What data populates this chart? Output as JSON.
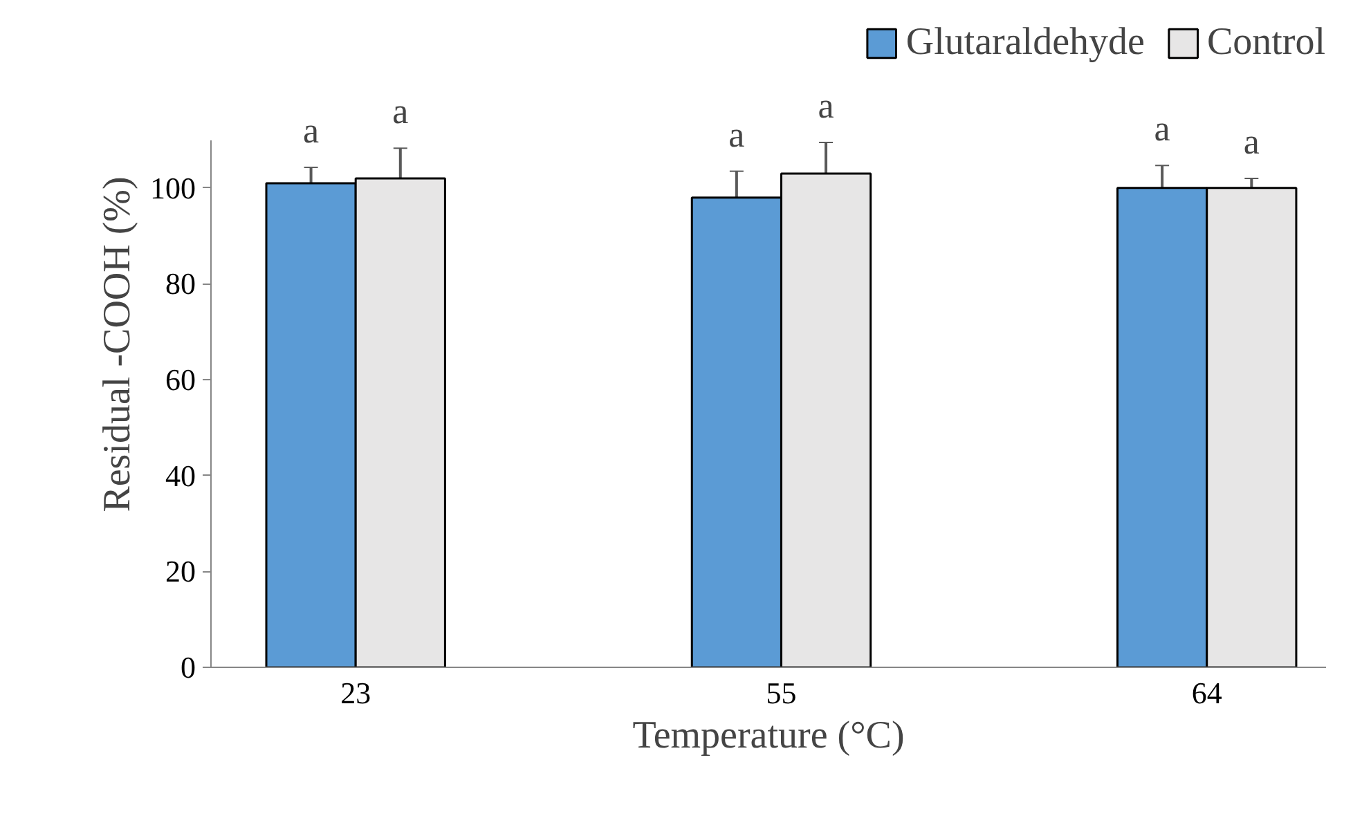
{
  "chart_data": {
    "type": "bar",
    "xlabel": "Temperature (°C)",
    "ylabel": "Residual -COOH (%)",
    "categories": [
      "23",
      "55",
      "64"
    ],
    "series": [
      {
        "name": "Glutaraldehyde",
        "color": "#5b9bd5",
        "values": [
          101,
          98,
          100
        ],
        "errors": [
          3.3,
          5.5,
          4.7
        ]
      },
      {
        "name": "Control",
        "color": "#e7e6e6",
        "values": [
          102,
          103,
          100
        ],
        "errors": [
          6.3,
          6.5,
          2.0
        ]
      }
    ],
    "annotations": [
      "a",
      "a",
      "a",
      "a",
      "a",
      "a"
    ],
    "ylim": [
      0,
      110
    ],
    "yticks": [
      0,
      20,
      40,
      60,
      80,
      100
    ],
    "grid": false,
    "legend": "top right"
  }
}
